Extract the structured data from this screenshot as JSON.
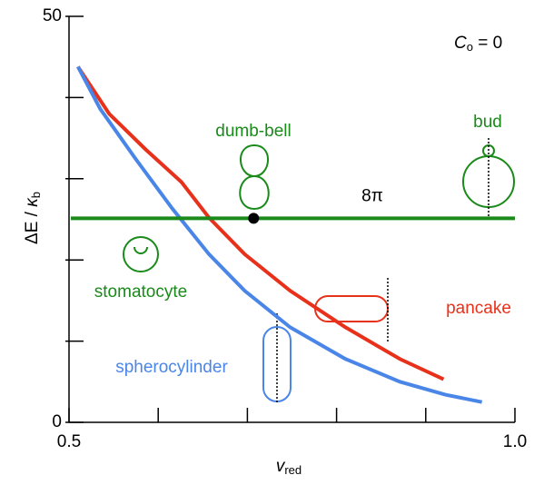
{
  "chart_data": {
    "type": "line",
    "title": {
      "symbol": "C",
      "sub": "o",
      "rest": " = 0"
    },
    "xlabel": {
      "symbol": "v",
      "sub": "red"
    },
    "ylabel": {
      "symbol": "ΔE",
      "sep": " / ",
      "kappa": "κ",
      "sub": "b"
    },
    "xlim": [
      0.5,
      1.0
    ],
    "ylim": [
      0,
      50
    ],
    "xticks": [
      0.5,
      {
        "value": 1.0,
        "label": "1.0"
      }
    ],
    "xminorticks": [
      0.6,
      0.7,
      0.8,
      0.9
    ],
    "yticks": [
      0,
      50
    ],
    "yminorticks": [
      10,
      20,
      30,
      40
    ],
    "series": [
      {
        "name": "pancake",
        "color": "#e8311a",
        "x": [
          0.51,
          0.545,
          0.586,
          0.626,
          0.657,
          0.697,
          0.748,
          0.81,
          0.871,
          0.92
        ],
        "values": [
          43.8,
          38.0,
          33.6,
          29.6,
          25.2,
          20.7,
          16.2,
          11.7,
          7.8,
          5.3
        ]
      },
      {
        "name": "spherocylinder",
        "color": "#4a86e8",
        "x": [
          0.51,
          0.535,
          0.575,
          0.616,
          0.657,
          0.697,
          0.748,
          0.81,
          0.871,
          0.922,
          0.963
        ],
        "values": [
          43.8,
          38.6,
          32.4,
          26.3,
          20.7,
          16.2,
          11.7,
          7.8,
          5.0,
          3.4,
          2.5
        ]
      }
    ],
    "hline": {
      "value": 25.13,
      "label": "8π",
      "color": "#1a8a1a"
    },
    "point": {
      "x": 0.707,
      "y": 25.13
    },
    "annotations": {
      "dumbbell": "dumb-bell",
      "bud": "bud",
      "stomatocyte": "stomatocyte"
    }
  }
}
